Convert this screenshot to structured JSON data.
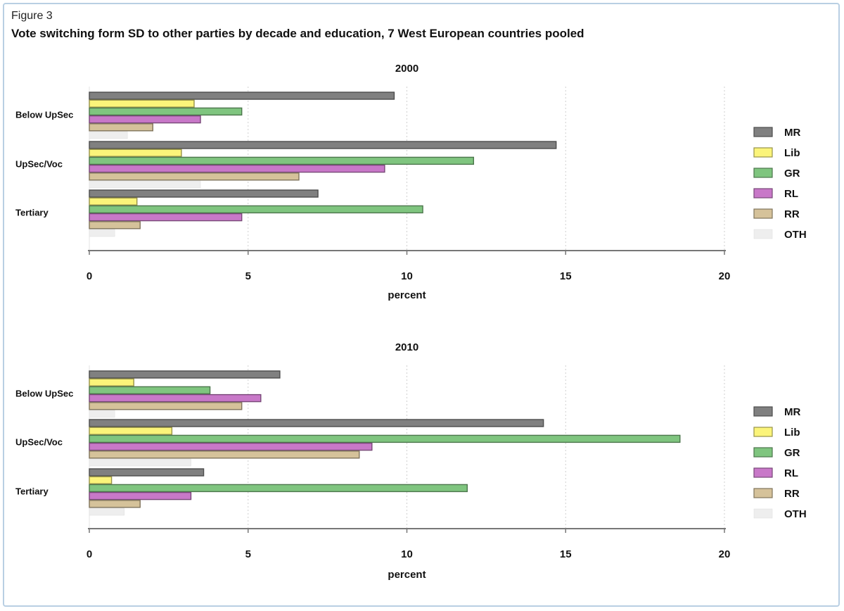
{
  "figure_label": "Figure 3",
  "title": "Vote switching form SD to other parties by decade and education, 7 West European countries pooled",
  "colors": {
    "MR": "#808080",
    "Lib": "#fbf47a",
    "GR": "#7fc57f",
    "RL": "#c878c8",
    "RR": "#d5c29a",
    "OTH": "#eeeeee",
    "grid": "#cfcfcf",
    "axis": "#777777"
  },
  "chart_data": [
    {
      "type": "bar",
      "orientation": "horizontal",
      "title": "2000",
      "xlabel": "percent",
      "ylabel": "",
      "xlim": [
        0,
        20
      ],
      "xticks": [
        0,
        5,
        10,
        15,
        20
      ],
      "xtick_labels": [
        "0",
        "5",
        "10",
        "15",
        "20"
      ],
      "grid": "vertical dotted",
      "legend": "right",
      "categories": [
        "Below UpSec",
        "UpSec/Voc",
        "Tertiary"
      ],
      "series": [
        {
          "name": "MR",
          "values": [
            9.6,
            14.7,
            7.2
          ]
        },
        {
          "name": "Lib",
          "values": [
            3.3,
            2.9,
            1.5
          ]
        },
        {
          "name": "GR",
          "values": [
            4.8,
            12.1,
            10.5
          ]
        },
        {
          "name": "RL",
          "values": [
            3.5,
            9.3,
            4.8
          ]
        },
        {
          "name": "RR",
          "values": [
            2.0,
            6.6,
            1.6
          ]
        },
        {
          "name": "OTH",
          "values": [
            1.2,
            3.5,
            0.8
          ]
        }
      ]
    },
    {
      "type": "bar",
      "orientation": "horizontal",
      "title": "2010",
      "xlabel": "percent",
      "ylabel": "",
      "xlim": [
        0,
        20
      ],
      "xticks": [
        0,
        5,
        10,
        15,
        20
      ],
      "xtick_labels": [
        "0",
        "5",
        "10",
        "15",
        "20"
      ],
      "grid": "vertical dotted",
      "legend": "right",
      "categories": [
        "Below UpSec",
        "UpSec/Voc",
        "Tertiary"
      ],
      "series": [
        {
          "name": "MR",
          "values": [
            6.0,
            14.3,
            3.6
          ]
        },
        {
          "name": "Lib",
          "values": [
            1.4,
            2.6,
            0.7
          ]
        },
        {
          "name": "GR",
          "values": [
            3.8,
            18.6,
            11.9
          ]
        },
        {
          "name": "RL",
          "values": [
            5.4,
            8.9,
            3.2
          ]
        },
        {
          "name": "RR",
          "values": [
            4.8,
            8.5,
            1.6
          ]
        },
        {
          "name": "OTH",
          "values": [
            0.8,
            3.2,
            1.1
          ]
        }
      ]
    }
  ]
}
